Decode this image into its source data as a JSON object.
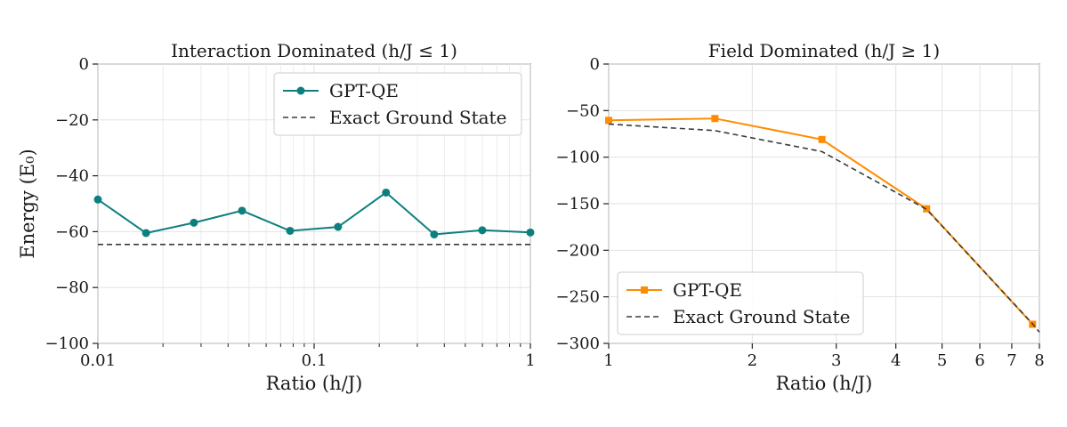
{
  "chart_data": [
    {
      "type": "line",
      "title": "Interaction Dominated (h/J ≤ 1)",
      "xlabel": "Ratio (h/J)",
      "ylabel": "Energy (E₀)",
      "xscale": "log",
      "xlim": [
        0.01,
        1
      ],
      "ylim": [
        -100,
        0
      ],
      "xtick_labels": [
        "0.01",
        "0.1",
        "1"
      ],
      "ytick_labels": [
        "0",
        "−20",
        "−40",
        "−60",
        "−80",
        "−100"
      ],
      "grid": true,
      "legend_position": "upper-right",
      "series": [
        {
          "name": "GPT-QE",
          "color": "#0e7f7f",
          "marker": "circle",
          "x": [
            0.01,
            0.0167,
            0.0278,
            0.0464,
            0.0774,
            0.129,
            0.215,
            0.359,
            0.599,
            1.0
          ],
          "y": [
            -48.5,
            -60.5,
            -56.8,
            -52.5,
            -59.7,
            -58.3,
            -46.0,
            -61.0,
            -59.5,
            -60.3
          ]
        },
        {
          "name": "Exact Ground State",
          "color": "#3a3a3a",
          "dashed": true,
          "x": [
            0.01,
            1.0
          ],
          "y": [
            -64.6,
            -64.6
          ]
        }
      ]
    },
    {
      "type": "line",
      "title": "Field Dominated (h/J ≥ 1)",
      "xlabel": "Ratio (h/J)",
      "xscale": "log",
      "xlim": [
        1,
        8
      ],
      "ylim": [
        -300,
        0
      ],
      "xtick_labels": [
        "1",
        "2",
        "3",
        "4",
        "5",
        "6",
        "7",
        "8"
      ],
      "ytick_labels": [
        "0",
        "−50",
        "−100",
        "−150",
        "−200",
        "−250",
        "−300"
      ],
      "grid": true,
      "legend_position": "lower-left",
      "series": [
        {
          "name": "GPT-QE",
          "color": "#ff8c00",
          "marker": "square",
          "x": [
            1.0,
            1.67,
            2.8,
            4.64,
            7.74
          ],
          "y": [
            -60.5,
            -58.5,
            -81.0,
            -155.5,
            -279.5
          ]
        },
        {
          "name": "Exact Ground State",
          "color": "#3a3a3a",
          "dashed": true,
          "x": [
            1.0,
            1.67,
            2.8,
            4.64,
            7.74,
            8.0
          ],
          "y": [
            -64.5,
            -71.5,
            -94.0,
            -156.0,
            -279.0,
            -288.0
          ]
        }
      ]
    }
  ]
}
